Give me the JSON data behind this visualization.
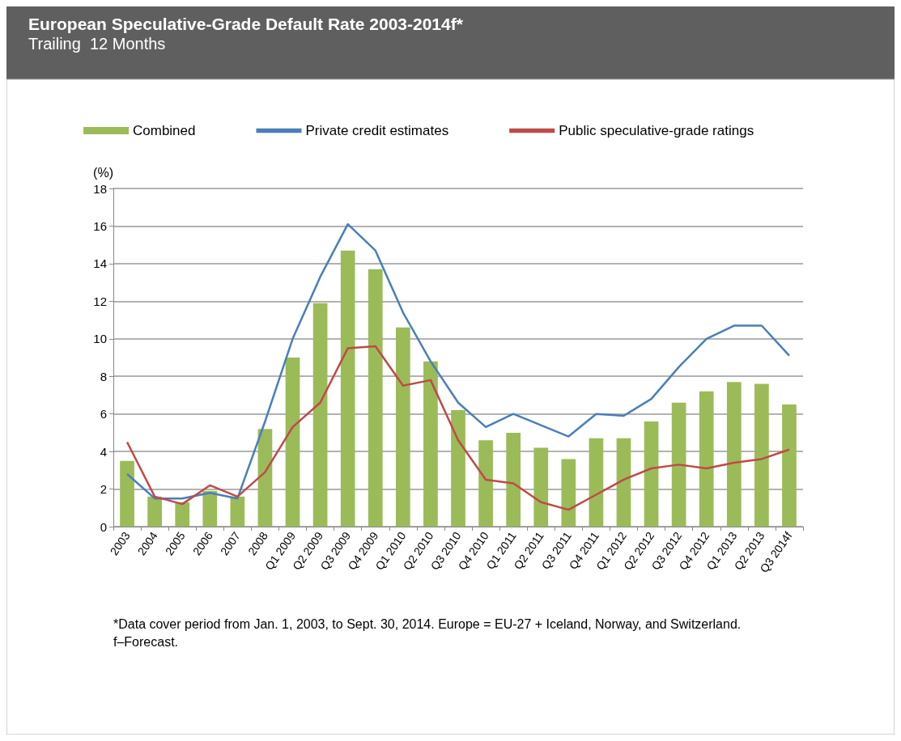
{
  "chart_data": {
    "type": "bar",
    "title": "European Speculative-Grade Default Rate 2003-2014f*",
    "subtitle": "Trailing  12 Months",
    "ylabel": "(%)",
    "categories": [
      "2003",
      "2004",
      "2005",
      "2006",
      "2007",
      "2008",
      "Q1 2009",
      "Q2 2009",
      "Q3 2009",
      "Q4 2009",
      "Q1 2010",
      "Q2 2010",
      "Q3 2010",
      "Q4 2010",
      "Q1 2011",
      "Q2 2011",
      "Q3 2011",
      "Q4 2011",
      "Q1 2012",
      "Q2 2012",
      "Q3 2012",
      "Q4 2012",
      "Q1 2013",
      "Q2 2013",
      "Q3 2014f"
    ],
    "series": [
      {
        "name": "Combined",
        "color": "#9bbb59",
        "values": [
          3.5,
          1.6,
          1.3,
          1.9,
          1.6,
          5.2,
          9.0,
          11.9,
          14.7,
          13.7,
          10.6,
          8.8,
          6.2,
          4.6,
          5.0,
          4.2,
          3.6,
          4.7,
          4.7,
          5.6,
          6.6,
          7.2,
          7.7,
          7.6,
          6.5
        ]
      },
      {
        "name": "Private credit estimates",
        "type": "line",
        "color": "#4a7ebb",
        "values": [
          2.8,
          1.5,
          1.5,
          1.8,
          1.5,
          5.6,
          10.0,
          13.3,
          16.1,
          14.7,
          11.4,
          8.8,
          6.6,
          5.3,
          6.0,
          5.4,
          4.8,
          6.0,
          5.9,
          6.8,
          8.5,
          10.0,
          10.7,
          10.7,
          9.1
        ]
      },
      {
        "name": "Public speculative-grade ratings",
        "type": "line",
        "color": "#be4b48",
        "values": [
          4.5,
          1.6,
          1.2,
          2.2,
          1.6,
          2.9,
          5.3,
          6.6,
          9.5,
          9.6,
          7.5,
          7.8,
          4.6,
          2.5,
          2.3,
          1.3,
          0.9,
          1.7,
          2.5,
          3.1,
          3.3,
          3.1,
          3.4,
          3.6,
          4.1
        ]
      }
    ],
    "ylim": [
      0,
      18
    ],
    "yticks": [
      0,
      2,
      4,
      6,
      8,
      10,
      12,
      14,
      16,
      18
    ],
    "grid": "y",
    "legend": "top",
    "marker": "none",
    "line_style": "solid",
    "annotations": [
      "*Data cover period from Jan. 1, 2003, to Sept. 30, 2014. Europe = EU-27 + Iceland, Norway, and Switzerland. f–Forecast."
    ]
  }
}
